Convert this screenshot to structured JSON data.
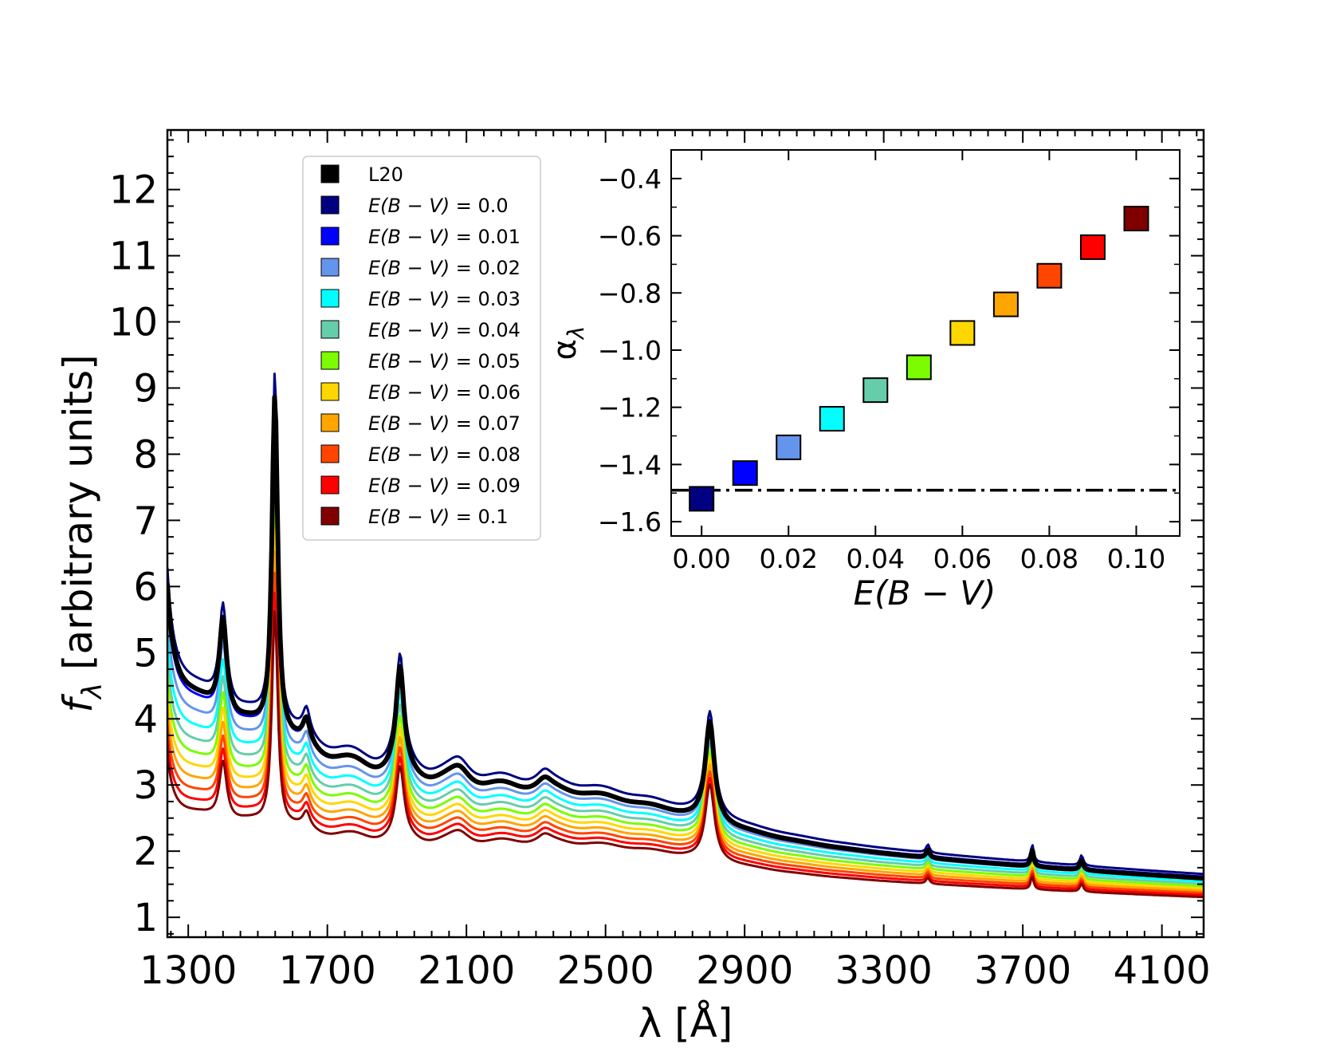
{
  "chart_data": [
    {
      "type": "line",
      "panel": "main",
      "xlabel": "λ [Å]",
      "ylabel_symbol": "f",
      "ylabel_subscript": "λ",
      "ylabel_rest": " [arbitrary units]",
      "xlim": [
        1240,
        4220
      ],
      "ylim": [
        0.7,
        12.9
      ],
      "xticks": [
        1300,
        1700,
        2100,
        2500,
        2900,
        3300,
        3700,
        4100
      ],
      "yticks": [
        1,
        2,
        3,
        4,
        5,
        6,
        7,
        8,
        9,
        10,
        11,
        12
      ],
      "emission_lines": [
        {
          "center": 1216,
          "amp": 5.0,
          "width": 16
        },
        {
          "center": 1400,
          "amp": 1.45,
          "width": 13
        },
        {
          "center": 1549,
          "amp": 5.2,
          "width": 10
        },
        {
          "center": 1640,
          "amp": 0.35,
          "width": 12
        },
        {
          "center": 1909,
          "amp": 1.55,
          "width": 14
        },
        {
          "center": 2080,
          "amp": 0.2,
          "width": 35
        },
        {
          "center": 2325,
          "amp": 0.15,
          "width": 25
        },
        {
          "center": 2800,
          "amp": 1.5,
          "width": 16
        },
        {
          "center": 3427,
          "amp": 0.12,
          "width": 6
        },
        {
          "center": 3727,
          "amp": 0.25,
          "width": 5
        },
        {
          "center": 3869,
          "amp": 0.15,
          "width": 6
        }
      ],
      "series": [
        {
          "name": "L20",
          "color": "#000000",
          "ebv": null,
          "lw": 6
        },
        {
          "name": "E(B − V) = 0.0",
          "color": "#000080",
          "ebv": 0.0,
          "lw": 3
        },
        {
          "name": "E(B − V) = 0.01",
          "color": "#0000ff",
          "ebv": 0.01,
          "lw": 3
        },
        {
          "name": "E(B − V) = 0.02",
          "color": "#6495ed",
          "ebv": 0.02,
          "lw": 3
        },
        {
          "name": "E(B − V) = 0.03",
          "color": "#00ffff",
          "ebv": 0.03,
          "lw": 3
        },
        {
          "name": "E(B − V) = 0.04",
          "color": "#66cdaa",
          "ebv": 0.04,
          "lw": 3
        },
        {
          "name": "E(B − V) = 0.05",
          "color": "#7cfc00",
          "ebv": 0.05,
          "lw": 3
        },
        {
          "name": "E(B − V) = 0.06",
          "color": "#ffd700",
          "ebv": 0.06,
          "lw": 3
        },
        {
          "name": "E(B − V) = 0.07",
          "color": "#ffa500",
          "ebv": 0.07,
          "lw": 3
        },
        {
          "name": "E(B − V) = 0.08",
          "color": "#ff4500",
          "ebv": 0.08,
          "lw": 3
        },
        {
          "name": "E(B − V) = 0.09",
          "color": "#ff0000",
          "ebv": 0.09,
          "lw": 3
        },
        {
          "name": "E(B − V) = 0.1",
          "color": "#800000",
          "ebv": 0.1,
          "lw": 3
        }
      ],
      "legend": {
        "position": "upper-center",
        "entries": [
          {
            "plain": "L20",
            "color": "#000000"
          },
          {
            "ebv": "0.0",
            "color": "#000080"
          },
          {
            "ebv": "0.01",
            "color": "#0000ff"
          },
          {
            "ebv": "0.02",
            "color": "#6495ed"
          },
          {
            "ebv": "0.03",
            "color": "#00ffff"
          },
          {
            "ebv": "0.04",
            "color": "#66cdaa"
          },
          {
            "ebv": "0.05",
            "color": "#7cfc00"
          },
          {
            "ebv": "0.06",
            "color": "#ffd700"
          },
          {
            "ebv": "0.07",
            "color": "#ffa500"
          },
          {
            "ebv": "0.08",
            "color": "#ff4500"
          },
          {
            "ebv": "0.09",
            "color": "#ff0000"
          },
          {
            "ebv": "0.1",
            "color": "#800000"
          }
        ],
        "ebv_prefix": "E(B − V) = "
      }
    },
    {
      "type": "scatter",
      "panel": "inset",
      "xlabel": "E(B − V)",
      "ylabel_symbol": "α",
      "ylabel_subscript": "λ",
      "xlim": [
        -0.007,
        0.11
      ],
      "ylim": [
        -1.65,
        -0.3
      ],
      "xticks": [
        "0.00",
        "0.02",
        "0.04",
        "0.06",
        "0.08",
        "0.10"
      ],
      "yticks": [
        "−0.4",
        "−0.6",
        "−0.8",
        "−1.0",
        "−1.2",
        "−1.4",
        "−1.6"
      ],
      "x": [
        0.0,
        0.01,
        0.02,
        0.03,
        0.04,
        0.05,
        0.06,
        0.07,
        0.08,
        0.09,
        0.1
      ],
      "y": [
        -1.52,
        -1.43,
        -1.34,
        -1.24,
        -1.14,
        -1.06,
        -0.94,
        -0.84,
        -0.74,
        -0.64,
        -0.54
      ],
      "colors": [
        "#000080",
        "#0000ff",
        "#6495ed",
        "#00ffff",
        "#66cdaa",
        "#7cfc00",
        "#ffd700",
        "#ffa500",
        "#ff4500",
        "#ff0000",
        "#800000"
      ],
      "reference_line": {
        "y": -1.49,
        "style": "dash-dot",
        "color": "#000000"
      }
    }
  ]
}
